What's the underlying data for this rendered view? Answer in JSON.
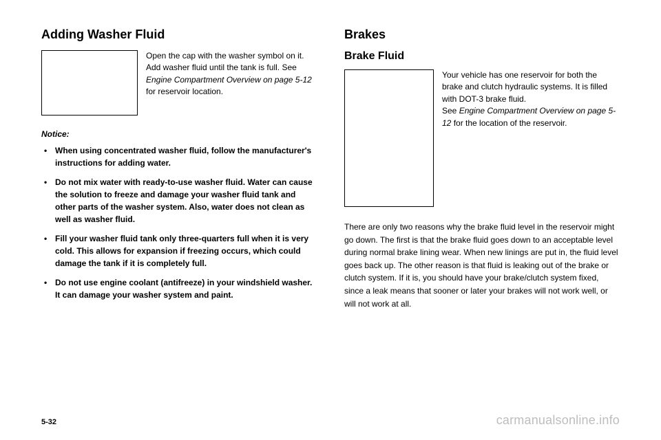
{
  "left": {
    "heading": "Adding Washer Fluid",
    "intro": "Open the cap with the washer symbol on it. Add washer fluid until the tank is full. See ",
    "intro_ref": "Engine Compartment Overview on page 5-12",
    "intro_tail": " for reservoir location.",
    "notice_label": "Notice:",
    "bullets": [
      "When using concentrated washer fluid, follow the manufacturer's instructions for adding water.",
      "Do not mix water with ready-to-use washer fluid. Water can cause the solution to freeze and damage your washer fluid tank and other parts of the washer system. Also, water does not clean as well as washer fluid.",
      "Fill your washer fluid tank only three-quarters full when it is very cold. This allows for expansion if freezing occurs, which could damage the tank if it is completely full.",
      "Do not use engine coolant (antifreeze) in your windshield washer. It can damage your washer system and paint."
    ]
  },
  "right": {
    "heading": "Brakes",
    "subheading": "Brake Fluid",
    "intro_a": "Your vehicle has one reservoir for both the brake and clutch hydraulic systems. It is filled with DOT-3 brake fluid.",
    "intro_b_pre": "See ",
    "intro_b_ref": "Engine Compartment Overview on page 5-12",
    "intro_b_post": " for the location of the reservoir.",
    "body": "There are only two reasons why the brake fluid level in the reservoir might go down. The first is that the brake fluid goes down to an acceptable level during normal brake lining wear. When new linings are put in, the fluid level goes back up. The other reason is that fluid is leaking out of the brake or clutch system. If it is, you should have your brake/clutch system fixed, since a leak means that sooner or later your brakes will not work well, or will not work at all."
  },
  "footer": {
    "page": "5-32",
    "watermark": "carmanualsonline.info"
  }
}
